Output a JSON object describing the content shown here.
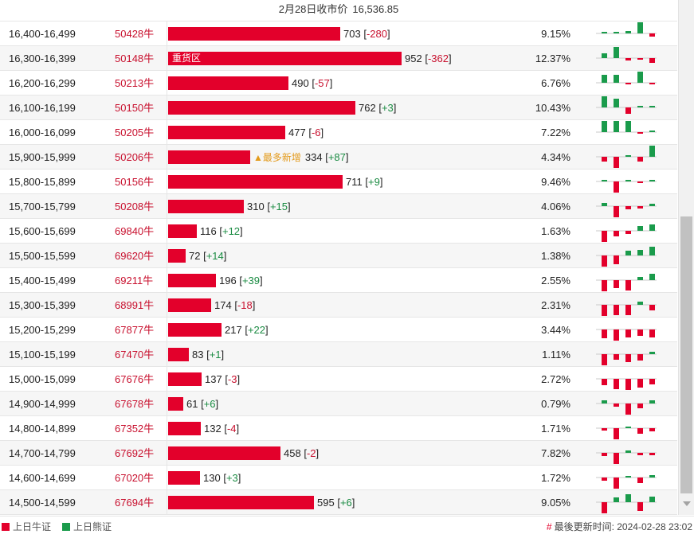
{
  "header": {
    "label": "2月28日收市价",
    "price": "16,536.85"
  },
  "colors": {
    "bull": "#e3002b",
    "bear": "#1a9b4b",
    "code": "#c8102e",
    "pos_change": "#1a8b42",
    "new_tag": "#e39a1b"
  },
  "bar_scale_max": 952,
  "rows": [
    {
      "range": "16,400-16,499",
      "code": "50428牛",
      "value": 703,
      "change": "-280",
      "pct": "9.15%",
      "spark": [
        0,
        0,
        0.2,
        1,
        -0.3
      ]
    },
    {
      "range": "16,300-16,399",
      "code": "50148牛",
      "value": 952,
      "change": "-362",
      "pct": "12.37%",
      "tag": "重货区",
      "spark": [
        0.4,
        1,
        -0.2,
        -0.1,
        -0.4
      ]
    },
    {
      "range": "16,200-16,299",
      "code": "50213牛",
      "value": 490,
      "change": "-57",
      "pct": "6.76%",
      "spark": [
        0.7,
        0.7,
        -0.1,
        1,
        -0.1
      ]
    },
    {
      "range": "16,100-16,199",
      "code": "50150牛",
      "value": 762,
      "change": "+3",
      "pct": "10.43%",
      "spark": [
        1,
        0.8,
        -0.6,
        0.1,
        0.1
      ]
    },
    {
      "range": "16,000-16,099",
      "code": "50205牛",
      "value": 477,
      "change": "-6",
      "pct": "7.22%",
      "spark": [
        1,
        1,
        1,
        -0.1,
        0.1
      ]
    },
    {
      "range": "15,900-15,999",
      "code": "50206牛",
      "value": 334,
      "change": "+87",
      "pct": "4.34%",
      "new": "▲最多新增",
      "spark": [
        -0.4,
        -1,
        0.1,
        -0.4,
        1
      ]
    },
    {
      "range": "15,800-15,899",
      "code": "50156牛",
      "value": 711,
      "change": "+9",
      "pct": "9.46%",
      "spark": [
        0.1,
        -1,
        0.1,
        -0.1,
        0.1
      ]
    },
    {
      "range": "15,700-15,799",
      "code": "50208牛",
      "value": 310,
      "change": "+15",
      "pct": "4.06%",
      "spark": [
        0.3,
        -1,
        -0.3,
        -0.2,
        0.2
      ]
    },
    {
      "range": "15,600-15,699",
      "code": "69840牛",
      "value": 116,
      "change": "+12",
      "pct": "1.63%",
      "spark": [
        -1,
        -0.5,
        -0.3,
        0.4,
        0.6
      ]
    },
    {
      "range": "15,500-15,599",
      "code": "69620牛",
      "value": 72,
      "change": "+14",
      "pct": "1.38%",
      "spark": [
        -1,
        -0.8,
        0.4,
        0.5,
        0.8
      ]
    },
    {
      "range": "15,400-15,499",
      "code": "69211牛",
      "value": 196,
      "change": "+39",
      "pct": "2.55%",
      "spark": [
        -1,
        -0.7,
        -0.9,
        0.3,
        0.6
      ]
    },
    {
      "range": "15,300-15,399",
      "code": "68991牛",
      "value": 174,
      "change": "-18",
      "pct": "2.31%",
      "spark": [
        -1,
        -0.9,
        -0.9,
        0.3,
        -0.5
      ]
    },
    {
      "range": "15,200-15,299",
      "code": "67877牛",
      "value": 217,
      "change": "+22",
      "pct": "3.44%",
      "spark": [
        -0.8,
        -1,
        -0.7,
        -0.6,
        -0.7
      ]
    },
    {
      "range": "15,100-15,199",
      "code": "67470牛",
      "value": 83,
      "change": "+1",
      "pct": "1.11%",
      "spark": [
        -1,
        -0.5,
        -0.7,
        -0.6,
        0.2
      ]
    },
    {
      "range": "15,000-15,099",
      "code": "67676牛",
      "value": 137,
      "change": "-3",
      "pct": "2.72%",
      "spark": [
        -0.6,
        -0.9,
        -1,
        -0.8,
        -0.5
      ]
    },
    {
      "range": "14,900-14,999",
      "code": "67678牛",
      "value": 61,
      "change": "+6",
      "pct": "0.79%",
      "spark": [
        0.3,
        -0.3,
        -1,
        -0.4,
        0.3
      ]
    },
    {
      "range": "14,800-14,899",
      "code": "67352牛",
      "value": 132,
      "change": "-4",
      "pct": "1.71%",
      "spark": [
        -0.2,
        -1,
        0.1,
        -0.5,
        -0.3
      ]
    },
    {
      "range": "14,700-14,799",
      "code": "67692牛",
      "value": 458,
      "change": "-2",
      "pct": "7.82%",
      "spark": [
        -0.3,
        -1,
        0.2,
        -0.2,
        -0.2
      ]
    },
    {
      "range": "14,600-14,699",
      "code": "67020牛",
      "value": 130,
      "change": "+3",
      "pct": "1.72%",
      "spark": [
        -0.3,
        -1,
        0.1,
        -0.5,
        0.2
      ]
    },
    {
      "range": "14,500-14,599",
      "code": "67694牛",
      "value": 595,
      "change": "+6",
      "pct": "9.05%",
      "spark": [
        -1,
        0.4,
        0.7,
        -0.8,
        0.5
      ]
    }
  ],
  "legend": {
    "bull": "上日牛证",
    "bear": "上日熊证"
  },
  "footer": {
    "hash": "#",
    "label": "最後更新时间:",
    "time": "2024-02-28 23:02"
  }
}
